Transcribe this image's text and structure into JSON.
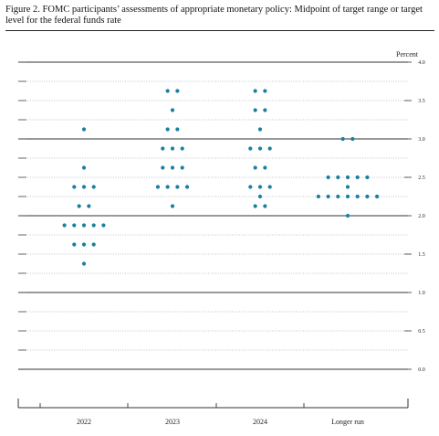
{
  "title": "Figure 2.  FOMC participants’ assessments of appropriate monetary policy:  Midpoint of target range or target level for the federal funds rate",
  "chart_data": {
    "type": "scatter",
    "title": "Figure 2.  FOMC participants’ assessments of appropriate monetary policy:  Midpoint of target range or target level for the federal funds rate",
    "ylabel": "Percent",
    "ylim": [
      0,
      4
    ],
    "y_ticks": [
      "0.0",
      "0.5",
      "1.0",
      "1.5",
      "2.0",
      "2.5",
      "3.0",
      "3.5",
      "4.0"
    ],
    "grid": true,
    "dot_color": "#1a7fa0",
    "categories": [
      "2022",
      "2023",
      "2024",
      "Longer run"
    ],
    "dot_counts": [
      {
        "category": "2022",
        "values": [
          {
            "rate": 3.125,
            "count": 1
          },
          {
            "rate": 2.625,
            "count": 1
          },
          {
            "rate": 2.375,
            "count": 3
          },
          {
            "rate": 2.125,
            "count": 2
          },
          {
            "rate": 1.875,
            "count": 5
          },
          {
            "rate": 1.625,
            "count": 3
          },
          {
            "rate": 1.375,
            "count": 1
          }
        ]
      },
      {
        "category": "2023",
        "values": [
          {
            "rate": 3.625,
            "count": 2
          },
          {
            "rate": 3.375,
            "count": 1
          },
          {
            "rate": 3.125,
            "count": 2
          },
          {
            "rate": 2.875,
            "count": 3
          },
          {
            "rate": 2.625,
            "count": 3
          },
          {
            "rate": 2.375,
            "count": 4
          },
          {
            "rate": 2.125,
            "count": 1
          }
        ]
      },
      {
        "category": "2024",
        "values": [
          {
            "rate": 3.625,
            "count": 2
          },
          {
            "rate": 3.375,
            "count": 2
          },
          {
            "rate": 3.125,
            "count": 1
          },
          {
            "rate": 2.875,
            "count": 3
          },
          {
            "rate": 2.625,
            "count": 2
          },
          {
            "rate": 2.375,
            "count": 3
          },
          {
            "rate": 2.25,
            "count": 1
          },
          {
            "rate": 2.125,
            "count": 2
          }
        ]
      },
      {
        "category": "Longer run",
        "values": [
          {
            "rate": 3.0,
            "count": 2
          },
          {
            "rate": 2.5,
            "count": 5
          },
          {
            "rate": 2.375,
            "count": 1
          },
          {
            "rate": 2.25,
            "count": 7
          },
          {
            "rate": 2.0,
            "count": 1
          }
        ]
      }
    ]
  }
}
